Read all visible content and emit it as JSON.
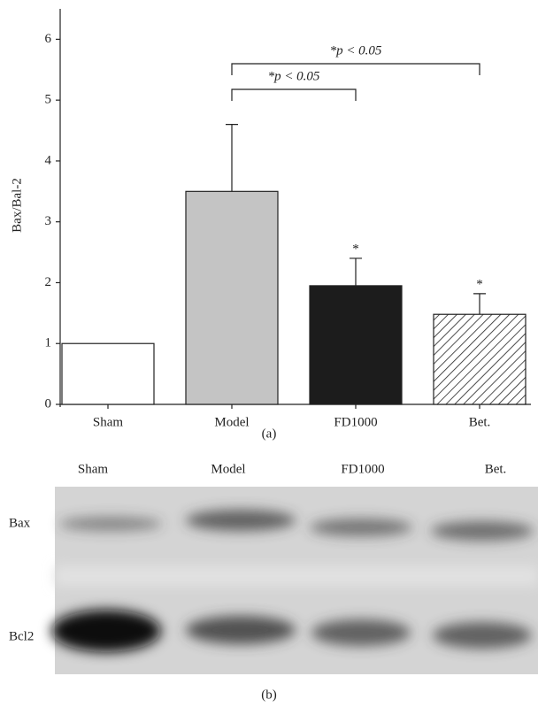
{
  "chart_data": {
    "type": "bar",
    "categories": [
      "Sham",
      "Model",
      "FD1000",
      "Bet."
    ],
    "values": [
      1.0,
      3.5,
      1.95,
      1.48
    ],
    "errors": [
      null,
      1.1,
      0.45,
      0.34
    ],
    "fills": [
      "#ffffff",
      "#c4c4c4",
      "#1c1c1c",
      "hatch"
    ],
    "markers": [
      null,
      null,
      "*",
      "*"
    ],
    "ylabel": "Bax/Bal-2",
    "ylim": [
      0,
      6.5
    ],
    "yticks": [
      0,
      1,
      2,
      3,
      4,
      5,
      6
    ],
    "annotations": [
      {
        "text": "*p < 0.05",
        "from": "Model",
        "to": "FD1000"
      },
      {
        "text": "*p < 0.05",
        "from": "Model",
        "to": "Bet."
      }
    ],
    "caption": "(a)"
  },
  "blot": {
    "lanes": [
      "Sham",
      "Model",
      "FD1000",
      "Bet."
    ],
    "rows": [
      "Bax",
      "Bcl2"
    ],
    "caption": "(b)"
  }
}
